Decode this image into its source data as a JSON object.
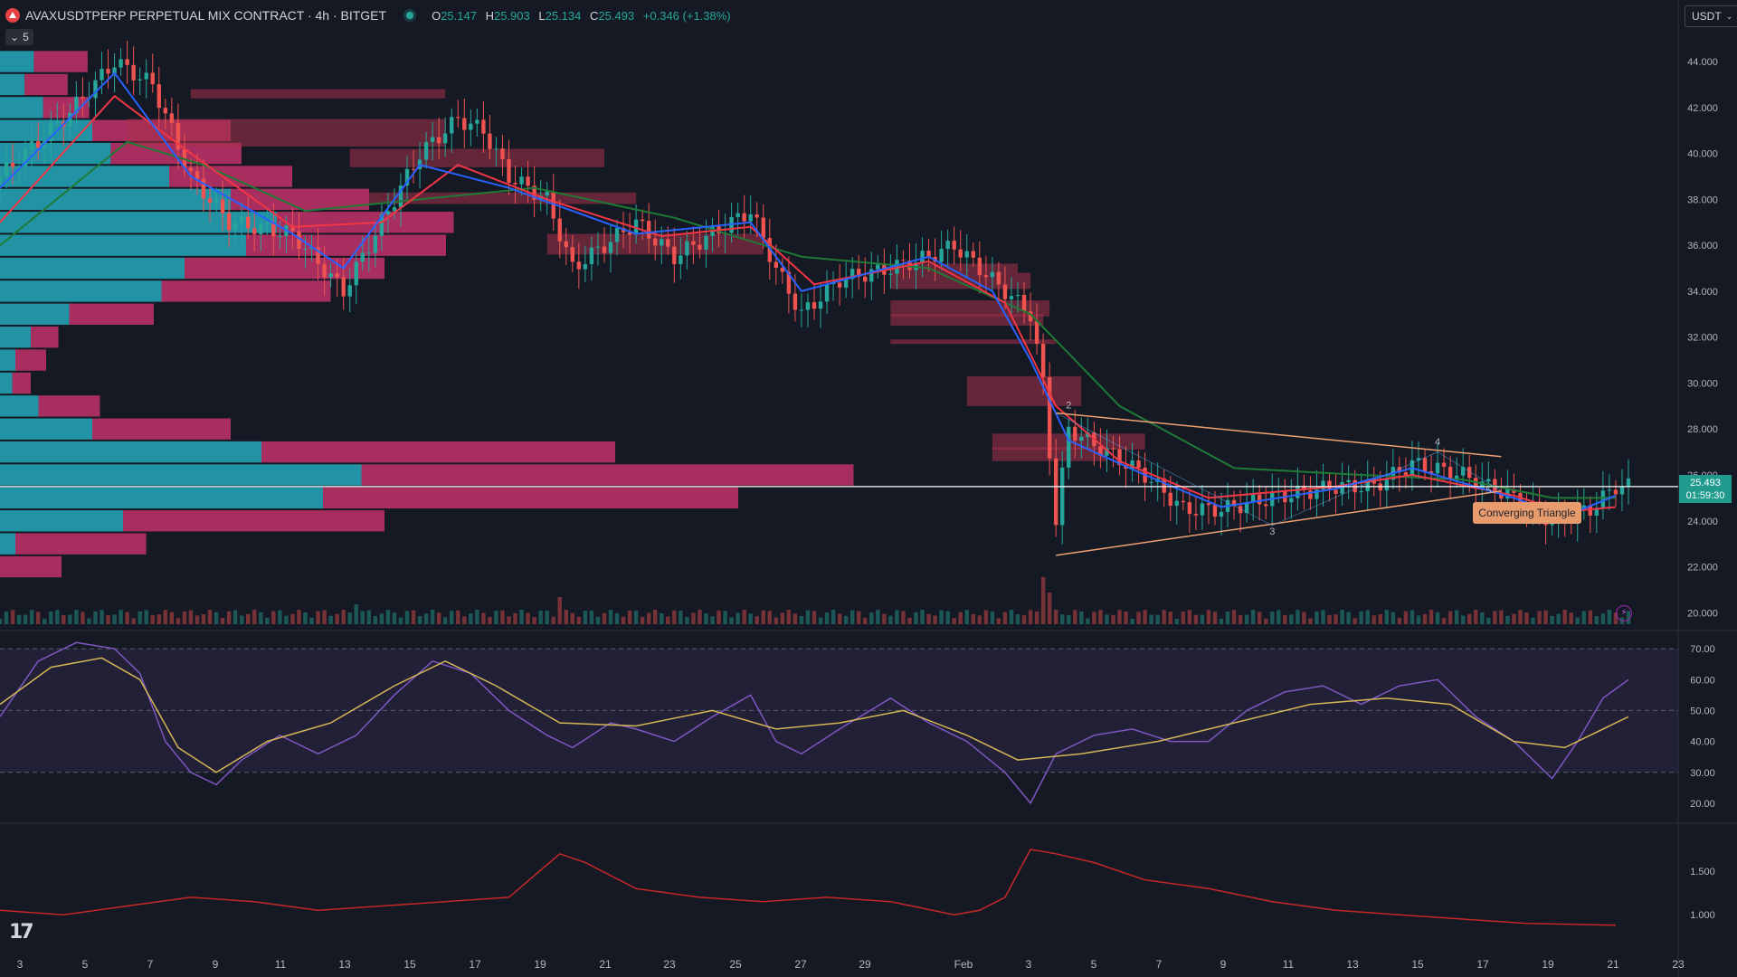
{
  "header": {
    "symbol": "AVAXUSDTPERP PERPETUAL MIX CONTRACT · 4h · BITGET",
    "open_label": "O",
    "open": "25.147",
    "high_label": "H",
    "high": "25.903",
    "low_label": "L",
    "low": "25.134",
    "close_label": "C",
    "close": "25.493",
    "change": "+0.346 (+1.38%)",
    "indicators_collapsed": "5"
  },
  "currency_selector": "USDT",
  "last_price": {
    "price": "25.493",
    "countdown": "01:59:30"
  },
  "pattern_label": "Converging Triangle",
  "colors": {
    "background": "#151924",
    "up": "#26a69a",
    "down": "#ef5350",
    "ema_fast": "#2962ff",
    "ema_mid": "#f23645",
    "ema_slow": "#1e7a35",
    "rsi": "#7e57c2",
    "rsi_ma": "#d6b656",
    "pattern": "#f0a070"
  },
  "icons": {
    "logo": "tradingview-logo",
    "alert": "lightning-icon"
  },
  "chart_data": [
    {
      "type": "line",
      "title": "AVAXUSDTPERP 4h price",
      "x_ticks": [
        "3",
        "5",
        "7",
        "9",
        "11",
        "13",
        "15",
        "17",
        "19",
        "21",
        "23",
        "25",
        "27",
        "29",
        "Feb",
        "3",
        "5",
        "7",
        "9",
        "11",
        "13",
        "15",
        "17",
        "19",
        "21",
        "23"
      ],
      "y_ticks": [
        "44.000",
        "42.000",
        "40.000",
        "38.000",
        "36.000",
        "34.000",
        "32.000",
        "30.000",
        "28.000",
        "26.000",
        "24.000",
        "22.000",
        "20.000"
      ],
      "ylim": [
        19.5,
        45.5
      ],
      "close_path": [
        [
          0,
          39
        ],
        [
          10,
          41.5
        ],
        [
          18,
          44
        ],
        [
          24,
          43
        ],
        [
          30,
          39
        ],
        [
          36,
          37
        ],
        [
          46,
          36.5
        ],
        [
          54,
          34
        ],
        [
          60,
          37
        ],
        [
          66,
          40
        ],
        [
          72,
          41.5
        ],
        [
          76,
          41
        ],
        [
          80,
          39
        ],
        [
          86,
          38
        ],
        [
          90,
          35
        ],
        [
          100,
          37
        ],
        [
          106,
          35.5
        ],
        [
          112,
          36.5
        ],
        [
          118,
          37.5
        ],
        [
          122,
          35
        ],
        [
          126,
          33
        ],
        [
          132,
          34.5
        ],
        [
          140,
          35
        ],
        [
          146,
          35.5
        ],
        [
          150,
          36
        ],
        [
          156,
          34.5
        ],
        [
          162,
          33
        ],
        [
          164,
          30
        ],
        [
          166,
          24
        ],
        [
          168,
          28
        ],
        [
          174,
          27
        ],
        [
          180,
          26
        ],
        [
          186,
          24.5
        ],
        [
          192,
          24.5
        ],
        [
          200,
          25
        ],
        [
          210,
          25.5
        ],
        [
          216,
          25.5
        ],
        [
          222,
          26.5
        ],
        [
          230,
          26
        ],
        [
          238,
          25
        ],
        [
          244,
          24
        ],
        [
          250,
          24.5
        ],
        [
          254,
          25.5
        ]
      ],
      "ema_fast": [
        [
          0,
          38.5
        ],
        [
          18,
          43.5
        ],
        [
          30,
          39
        ],
        [
          46,
          36.5
        ],
        [
          54,
          35
        ],
        [
          66,
          39.5
        ],
        [
          80,
          38.5
        ],
        [
          100,
          36.5
        ],
        [
          118,
          37
        ],
        [
          126,
          34
        ],
        [
          146,
          35.5
        ],
        [
          156,
          34
        ],
        [
          162,
          31
        ],
        [
          168,
          27.5
        ],
        [
          180,
          26
        ],
        [
          192,
          24.6
        ],
        [
          210,
          25.4
        ],
        [
          222,
          26.3
        ],
        [
          238,
          25
        ],
        [
          246,
          24.2
        ],
        [
          254,
          25.1
        ]
      ],
      "ema_mid": [
        [
          0,
          37
        ],
        [
          18,
          42.5
        ],
        [
          30,
          40
        ],
        [
          46,
          36.8
        ],
        [
          60,
          37
        ],
        [
          72,
          39.5
        ],
        [
          86,
          38
        ],
        [
          104,
          36.4
        ],
        [
          118,
          36.8
        ],
        [
          128,
          34.3
        ],
        [
          146,
          35.3
        ],
        [
          158,
          33.5
        ],
        [
          166,
          29
        ],
        [
          176,
          26.6
        ],
        [
          190,
          25
        ],
        [
          210,
          25.5
        ],
        [
          222,
          26
        ],
        [
          238,
          25.1
        ],
        [
          246,
          24.4
        ],
        [
          254,
          24.6
        ]
      ],
      "ema_slow": [
        [
          0,
          36
        ],
        [
          20,
          40.5
        ],
        [
          32,
          39.5
        ],
        [
          48,
          37.5
        ],
        [
          66,
          38
        ],
        [
          84,
          38.5
        ],
        [
          106,
          37.2
        ],
        [
          126,
          35.5
        ],
        [
          146,
          35
        ],
        [
          162,
          33
        ],
        [
          176,
          29
        ],
        [
          194,
          26.3
        ],
        [
          214,
          26
        ],
        [
          230,
          25.8
        ],
        [
          244,
          25
        ],
        [
          254,
          25
        ]
      ],
      "volume_profile": [
        {
          "price": 44.0,
          "buy": 22,
          "sell": 35
        },
        {
          "price": 43.0,
          "buy": 16,
          "sell": 28
        },
        {
          "price": 42.0,
          "buy": 28,
          "sell": 30
        },
        {
          "price": 41.0,
          "buy": 60,
          "sell": 90
        },
        {
          "price": 40.0,
          "buy": 72,
          "sell": 85
        },
        {
          "price": 39.0,
          "buy": 110,
          "sell": 80
        },
        {
          "price": 38.0,
          "buy": 150,
          "sell": 90
        },
        {
          "price": 37.0,
          "buy": 180,
          "sell": 115
        },
        {
          "price": 36.0,
          "buy": 160,
          "sell": 130
        },
        {
          "price": 35.0,
          "buy": 120,
          "sell": 130
        },
        {
          "price": 34.0,
          "buy": 105,
          "sell": 110
        },
        {
          "price": 33.0,
          "buy": 45,
          "sell": 55
        },
        {
          "price": 32.0,
          "buy": 20,
          "sell": 18
        },
        {
          "price": 31.0,
          "buy": 10,
          "sell": 20
        },
        {
          "price": 30.0,
          "buy": 8,
          "sell": 12
        },
        {
          "price": 29.0,
          "buy": 25,
          "sell": 40
        },
        {
          "price": 28.0,
          "buy": 60,
          "sell": 90
        },
        {
          "price": 27.0,
          "buy": 170,
          "sell": 230
        },
        {
          "price": 26.0,
          "buy": 235,
          "sell": 320
        },
        {
          "price": 25.0,
          "buy": 210,
          "sell": 270
        },
        {
          "price": 24.0,
          "buy": 80,
          "sell": 170
        },
        {
          "price": 23.0,
          "buy": 10,
          "sell": 85
        },
        {
          "price": 22.0,
          "buy": 0,
          "sell": 40
        }
      ],
      "pattern_points": [
        "2",
        "3",
        "4",
        "5"
      ],
      "current_price": 25.493
    },
    {
      "type": "line",
      "y_ticks": [
        "70.00",
        "60.00",
        "50.00",
        "40.00",
        "30.00",
        "20.00"
      ],
      "ylim": [
        15,
        75
      ],
      "band": [
        30,
        70
      ],
      "rsi": [
        [
          0,
          48
        ],
        [
          6,
          66
        ],
        [
          12,
          72
        ],
        [
          18,
          70
        ],
        [
          22,
          62
        ],
        [
          26,
          40
        ],
        [
          30,
          30
        ],
        [
          34,
          26
        ],
        [
          38,
          34
        ],
        [
          44,
          42
        ],
        [
          50,
          36
        ],
        [
          56,
          42
        ],
        [
          62,
          55
        ],
        [
          68,
          66
        ],
        [
          74,
          62
        ],
        [
          80,
          50
        ],
        [
          86,
          42
        ],
        [
          90,
          38
        ],
        [
          96,
          46
        ],
        [
          100,
          44
        ],
        [
          106,
          40
        ],
        [
          112,
          48
        ],
        [
          118,
          55
        ],
        [
          122,
          40
        ],
        [
          126,
          36
        ],
        [
          132,
          44
        ],
        [
          140,
          54
        ],
        [
          146,
          46
        ],
        [
          152,
          40
        ],
        [
          158,
          30
        ],
        [
          162,
          20
        ],
        [
          166,
          36
        ],
        [
          172,
          42
        ],
        [
          178,
          44
        ],
        [
          184,
          40
        ],
        [
          190,
          40
        ],
        [
          196,
          50
        ],
        [
          202,
          56
        ],
        [
          208,
          58
        ],
        [
          214,
          52
        ],
        [
          220,
          58
        ],
        [
          226,
          60
        ],
        [
          232,
          48
        ],
        [
          238,
          40
        ],
        [
          244,
          28
        ],
        [
          248,
          40
        ],
        [
          252,
          54
        ],
        [
          256,
          60
        ]
      ],
      "rsi_ma": [
        [
          0,
          52
        ],
        [
          8,
          64
        ],
        [
          16,
          67
        ],
        [
          22,
          60
        ],
        [
          28,
          38
        ],
        [
          34,
          30
        ],
        [
          42,
          40
        ],
        [
          52,
          46
        ],
        [
          62,
          58
        ],
        [
          70,
          66
        ],
        [
          78,
          58
        ],
        [
          88,
          46
        ],
        [
          100,
          45
        ],
        [
          112,
          50
        ],
        [
          122,
          44
        ],
        [
          132,
          46
        ],
        [
          142,
          50
        ],
        [
          152,
          42
        ],
        [
          160,
          34
        ],
        [
          170,
          36
        ],
        [
          182,
          40
        ],
        [
          194,
          46
        ],
        [
          206,
          52
        ],
        [
          218,
          54
        ],
        [
          228,
          52
        ],
        [
          238,
          40
        ],
        [
          246,
          38
        ],
        [
          256,
          48
        ]
      ]
    },
    {
      "type": "line",
      "y_ticks": [
        "1.500",
        "1.000"
      ],
      "ylim": [
        0.7,
        2.0
      ],
      "values": [
        [
          0,
          1.05
        ],
        [
          10,
          1.0
        ],
        [
          20,
          1.1
        ],
        [
          30,
          1.2
        ],
        [
          40,
          1.15
        ],
        [
          50,
          1.05
        ],
        [
          60,
          1.1
        ],
        [
          70,
          1.15
        ],
        [
          80,
          1.2
        ],
        [
          84,
          1.45
        ],
        [
          88,
          1.7
        ],
        [
          92,
          1.6
        ],
        [
          100,
          1.3
        ],
        [
          110,
          1.2
        ],
        [
          120,
          1.15
        ],
        [
          130,
          1.2
        ],
        [
          140,
          1.15
        ],
        [
          150,
          1.0
        ],
        [
          154,
          1.05
        ],
        [
          158,
          1.2
        ],
        [
          162,
          1.75
        ],
        [
          166,
          1.7
        ],
        [
          172,
          1.6
        ],
        [
          180,
          1.4
        ],
        [
          190,
          1.3
        ],
        [
          200,
          1.15
        ],
        [
          210,
          1.05
        ],
        [
          220,
          1.0
        ],
        [
          230,
          0.95
        ],
        [
          240,
          0.9
        ],
        [
          254,
          0.88
        ]
      ]
    }
  ]
}
